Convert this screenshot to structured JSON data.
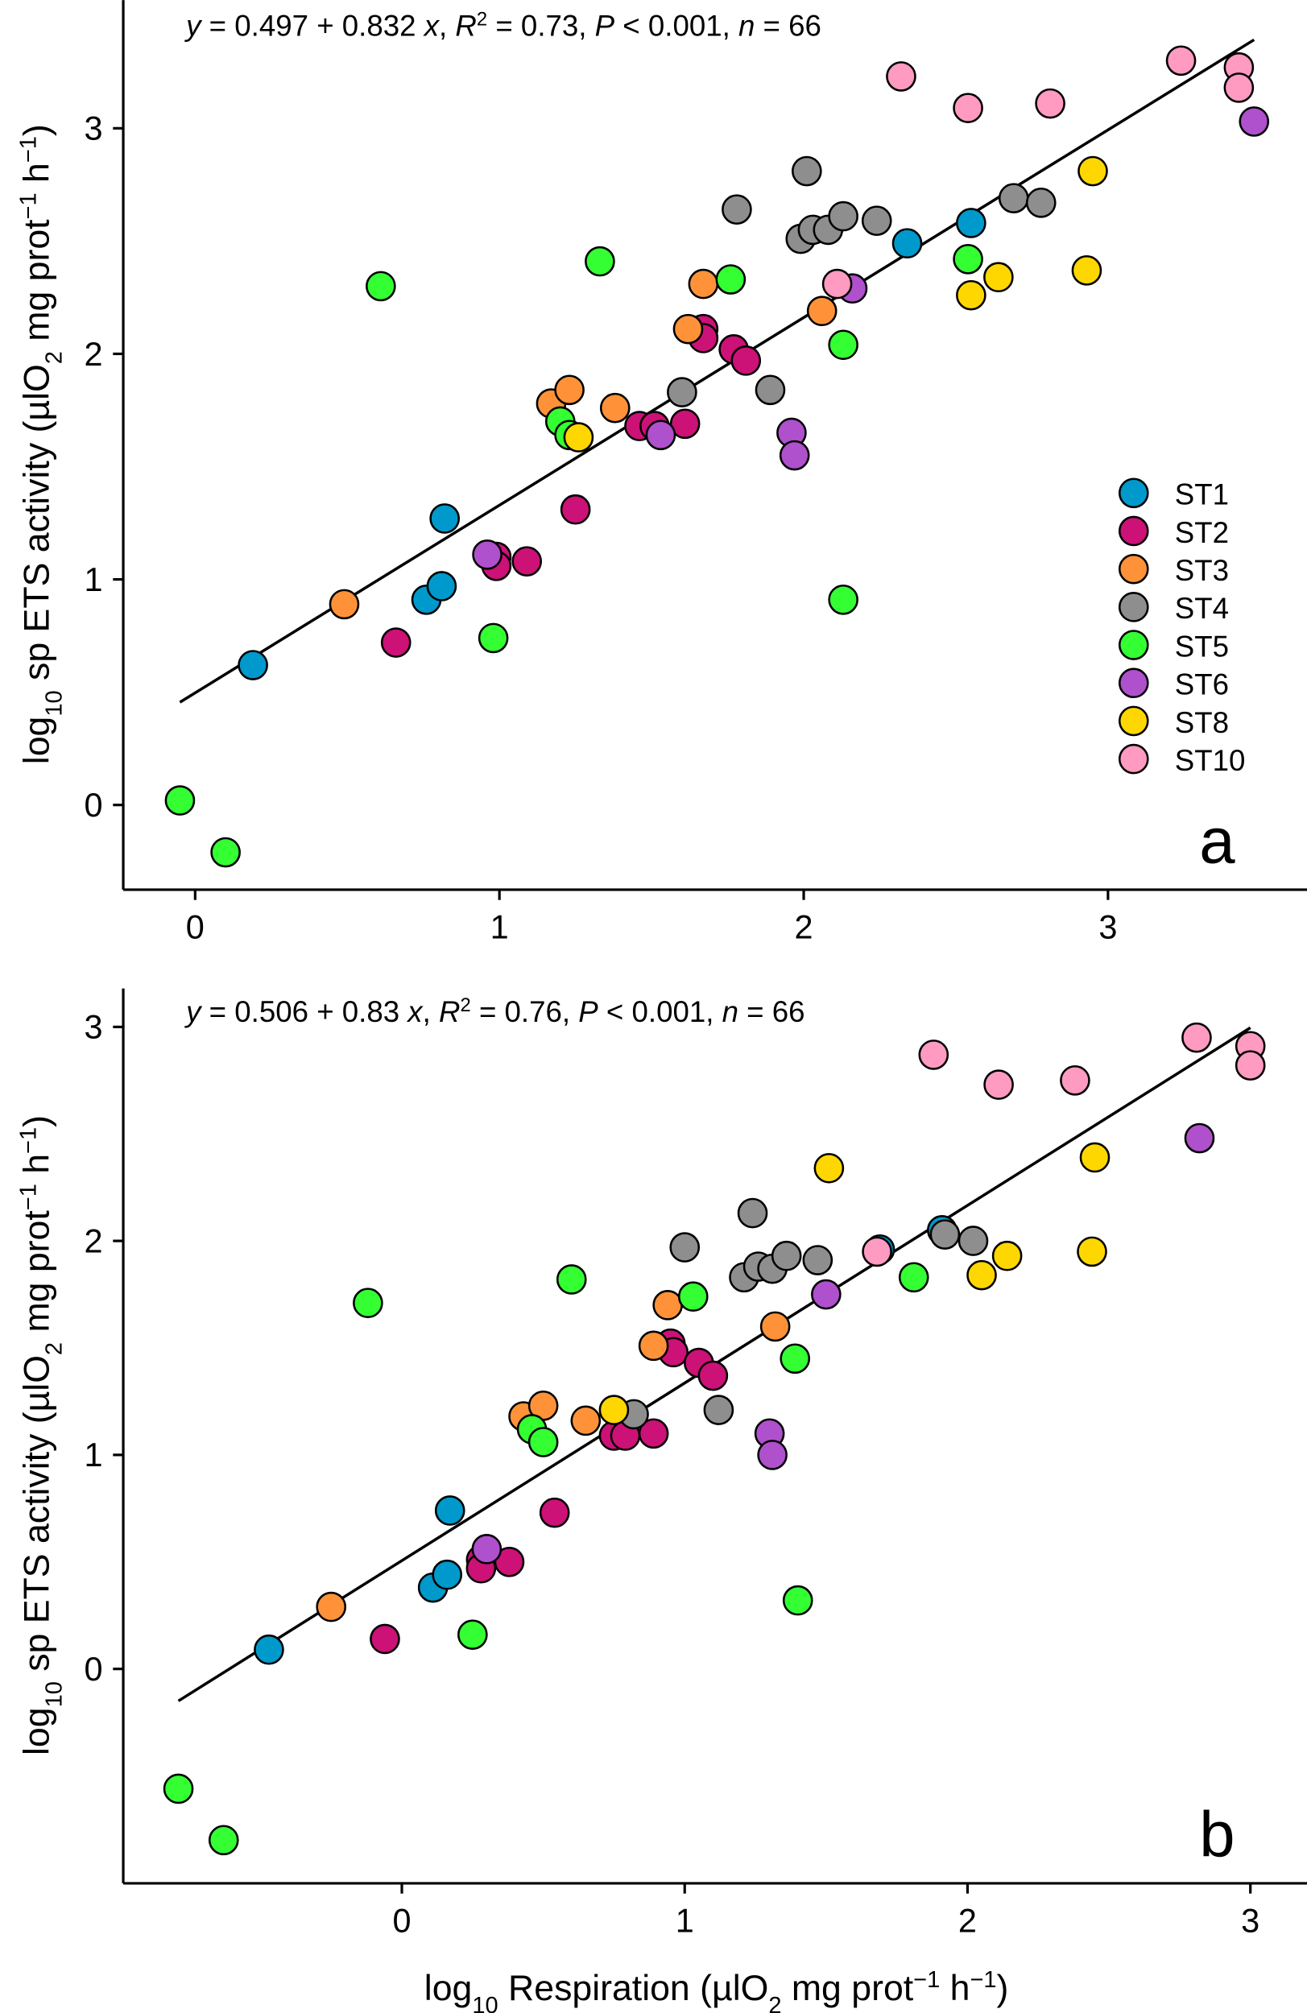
{
  "chart_data": [
    {
      "type": "scatter",
      "panel_label": "a",
      "equation": [
        {
          "t": "y",
          "i": true
        },
        {
          "t": " = 0.497 + 0.832 "
        },
        {
          "t": "x",
          "i": true
        },
        {
          "t": ", "
        },
        {
          "t": "R",
          "i": true
        },
        {
          "t": "2",
          "sup": true
        },
        {
          "t": " = 0.73, "
        },
        {
          "t": "P",
          "i": true
        },
        {
          "t": " < 0.001, "
        },
        {
          "t": "n",
          "i": true
        },
        {
          "t": " = 66"
        }
      ],
      "fit": {
        "intercept": 0.497,
        "slope": 0.832,
        "x_range": [
          -0.05,
          3.48
        ]
      },
      "xlim": [
        -0.25,
        3.65
      ],
      "ylim": [
        -0.38,
        3.55
      ],
      "xticks": [
        0,
        1,
        2,
        3
      ],
      "yticks": [
        0,
        1,
        2,
        3
      ],
      "xlabel": "",
      "ylabel": [
        {
          "t": "log"
        },
        {
          "t": "10",
          "sub": true
        },
        {
          "t": " sp ETS activity ("
        },
        {
          "t": "µlO"
        },
        {
          "t": "2",
          "sub": true
        },
        {
          "t": " mg prot"
        },
        {
          "t": "−1",
          "sup": true
        },
        {
          "t": " h"
        },
        {
          "t": "−1",
          "sup": true
        },
        {
          "t": ")"
        }
      ],
      "legend_position": "right-middle",
      "series": [
        {
          "name": "ST1",
          "color": "#0099CC",
          "points": [
            [
              0.19,
              0.62
            ],
            [
              0.76,
              0.91
            ],
            [
              0.81,
              0.97
            ],
            [
              0.82,
              1.27
            ],
            [
              2.34,
              2.49
            ],
            [
              2.55,
              2.58
            ]
          ]
        },
        {
          "name": "ST2",
          "color": "#CC1177",
          "points": [
            [
              0.66,
              0.72
            ],
            [
              0.99,
              1.1
            ],
            [
              0.99,
              1.06
            ],
            [
              1.09,
              1.08
            ],
            [
              1.25,
              1.31
            ],
            [
              1.46,
              1.68
            ],
            [
              1.51,
              1.68
            ],
            [
              1.61,
              1.69
            ],
            [
              1.67,
              2.11
            ],
            [
              1.67,
              2.07
            ],
            [
              1.77,
              2.02
            ],
            [
              1.81,
              1.97
            ]
          ]
        },
        {
          "name": "ST3",
          "color": "#FF9238",
          "points": [
            [
              0.49,
              0.89
            ],
            [
              1.17,
              1.78
            ],
            [
              1.23,
              1.84
            ],
            [
              1.38,
              1.76
            ],
            [
              1.62,
              2.11
            ],
            [
              1.67,
              2.31
            ],
            [
              2.06,
              2.19
            ]
          ]
        },
        {
          "name": "ST4",
          "color": "#8E8E8E",
          "points": [
            [
              1.78,
              2.64
            ],
            [
              1.6,
              1.83
            ],
            [
              1.89,
              1.84
            ],
            [
              2.01,
              2.81
            ],
            [
              1.99,
              2.51
            ],
            [
              2.03,
              2.55
            ],
            [
              2.08,
              2.55
            ],
            [
              2.13,
              2.61
            ],
            [
              2.24,
              2.59
            ],
            [
              2.69,
              2.69
            ],
            [
              2.78,
              2.67
            ]
          ]
        },
        {
          "name": "ST5",
          "color": "#33FF33",
          "points": [
            [
              0.61,
              2.3
            ],
            [
              1.33,
              2.41
            ],
            [
              1.76,
              2.33
            ],
            [
              1.2,
              1.7
            ],
            [
              1.23,
              1.64
            ],
            [
              0.98,
              0.74
            ],
            [
              2.13,
              2.04
            ],
            [
              2.13,
              0.91
            ],
            [
              2.54,
              2.42
            ],
            [
              -0.05,
              0.02
            ],
            [
              0.1,
              -0.21
            ]
          ]
        },
        {
          "name": "ST6",
          "color": "#AF50CC",
          "points": [
            [
              0.96,
              1.11
            ],
            [
              1.53,
              1.64
            ],
            [
              1.96,
              1.65
            ],
            [
              1.97,
              1.55
            ],
            [
              2.16,
              2.29
            ],
            [
              3.48,
              3.03
            ]
          ]
        },
        {
          "name": "ST8",
          "color": "#FFD700",
          "points": [
            [
              1.26,
              1.63
            ],
            [
              2.55,
              2.26
            ],
            [
              2.64,
              2.34
            ],
            [
              2.93,
              2.37
            ],
            [
              2.95,
              2.81
            ]
          ]
        },
        {
          "name": "ST10",
          "color": "#FF9AC0",
          "points": [
            [
              2.32,
              3.23
            ],
            [
              2.54,
              3.09
            ],
            [
              2.81,
              3.11
            ],
            [
              3.24,
              3.3
            ],
            [
              3.43,
              3.27
            ],
            [
              3.43,
              3.18
            ],
            [
              2.11,
              2.31
            ]
          ]
        }
      ]
    },
    {
      "type": "scatter",
      "panel_label": "b",
      "equation": [
        {
          "t": "y",
          "i": true
        },
        {
          "t": " = 0.506 + 0.83 "
        },
        {
          "t": "x",
          "i": true
        },
        {
          "t": ", "
        },
        {
          "t": "R",
          "i": true
        },
        {
          "t": "2",
          "sup": true
        },
        {
          "t": " = 0.76, "
        },
        {
          "t": "P",
          "i": true
        },
        {
          "t": " < 0.001, "
        },
        {
          "t": "n",
          "i": true
        },
        {
          "t": " = 66"
        }
      ],
      "fit": {
        "intercept": 0.506,
        "slope": 0.83,
        "x_range": [
          -0.79,
          3.0
        ]
      },
      "xlim": [
        -0.98,
        3.15
      ],
      "ylim": [
        -0.92,
        3.0
      ],
      "xticks": [
        0,
        1,
        2,
        3
      ],
      "yticks": [
        0,
        1,
        2,
        3
      ],
      "xlabel": [
        {
          "t": "log"
        },
        {
          "t": "10",
          "sub": true
        },
        {
          "t": " Respiration ("
        },
        {
          "t": "µlO"
        },
        {
          "t": "2",
          "sub": true
        },
        {
          "t": " mg prot"
        },
        {
          "t": "−1",
          "sup": true
        },
        {
          "t": " h"
        },
        {
          "t": "−1",
          "sup": true
        },
        {
          "t": ")"
        }
      ],
      "ylabel": [
        {
          "t": "log"
        },
        {
          "t": "10",
          "sub": true
        },
        {
          "t": " sp ETS activity ("
        },
        {
          "t": "µlO"
        },
        {
          "t": "2",
          "sub": true
        },
        {
          "t": " mg prot"
        },
        {
          "t": "−1",
          "sup": true
        },
        {
          "t": " h"
        },
        {
          "t": "−1",
          "sup": true
        },
        {
          "t": ")"
        }
      ],
      "series": [
        {
          "name": "ST1",
          "color": "#0099CC",
          "points": [
            [
              -0.47,
              0.09
            ],
            [
              0.11,
              0.38
            ],
            [
              0.16,
              0.44
            ],
            [
              0.17,
              0.74
            ],
            [
              1.69,
              1.96
            ],
            [
              1.91,
              2.05
            ]
          ]
        },
        {
          "name": "ST2",
          "color": "#CC1177",
          "points": [
            [
              -0.06,
              0.14
            ],
            [
              0.28,
              0.51
            ],
            [
              0.28,
              0.47
            ],
            [
              0.38,
              0.5
            ],
            [
              0.54,
              0.73
            ],
            [
              0.75,
              1.09
            ],
            [
              0.79,
              1.09
            ],
            [
              0.89,
              1.1
            ],
            [
              0.95,
              1.52
            ],
            [
              0.96,
              1.48
            ],
            [
              1.05,
              1.43
            ],
            [
              1.1,
              1.37
            ]
          ]
        },
        {
          "name": "ST3",
          "color": "#FF9238",
          "points": [
            [
              -0.25,
              0.29
            ],
            [
              0.43,
              1.18
            ],
            [
              0.5,
              1.23
            ],
            [
              0.65,
              1.16
            ],
            [
              0.89,
              1.51
            ],
            [
              0.94,
              1.7
            ],
            [
              1.32,
              1.6
            ]
          ]
        },
        {
          "name": "ST4",
          "color": "#8E8E8E",
          "points": [
            [
              1.24,
              2.13
            ],
            [
              1.0,
              1.97
            ],
            [
              0.82,
              1.19
            ],
            [
              1.12,
              1.21
            ],
            [
              1.21,
              1.83
            ],
            [
              1.26,
              1.88
            ],
            [
              1.31,
              1.87
            ],
            [
              1.36,
              1.93
            ],
            [
              1.47,
              1.91
            ],
            [
              1.92,
              2.03
            ],
            [
              2.02,
              2.0
            ]
          ]
        },
        {
          "name": "ST5",
          "color": "#33FF33",
          "points": [
            [
              -0.12,
              1.71
            ],
            [
              0.6,
              1.82
            ],
            [
              1.03,
              1.74
            ],
            [
              0.46,
              1.12
            ],
            [
              0.5,
              1.06
            ],
            [
              0.25,
              0.16
            ],
            [
              1.39,
              1.45
            ],
            [
              1.4,
              0.32
            ],
            [
              1.81,
              1.83
            ],
            [
              -0.79,
              -0.56
            ],
            [
              -0.63,
              -0.8
            ]
          ]
        },
        {
          "name": "ST6",
          "color": "#AF50CC",
          "points": [
            [
              0.3,
              0.56
            ],
            [
              1.3,
              1.1
            ],
            [
              1.31,
              1.0
            ],
            [
              1.5,
              1.75
            ],
            [
              2.82,
              2.48
            ]
          ]
        },
        {
          "name": "ST8",
          "color": "#FFD700",
          "points": [
            [
              0.75,
              1.21
            ],
            [
              1.51,
              2.34
            ],
            [
              2.05,
              1.84
            ],
            [
              2.14,
              1.93
            ],
            [
              2.44,
              1.95
            ],
            [
              2.45,
              2.39
            ]
          ]
        },
        {
          "name": "ST10",
          "color": "#FF9AC0",
          "points": [
            [
              1.88,
              2.87
            ],
            [
              2.11,
              2.73
            ],
            [
              2.38,
              2.75
            ],
            [
              2.81,
              2.95
            ],
            [
              3.0,
              2.91
            ],
            [
              3.0,
              2.82
            ],
            [
              1.68,
              1.95
            ]
          ]
        }
      ]
    }
  ]
}
